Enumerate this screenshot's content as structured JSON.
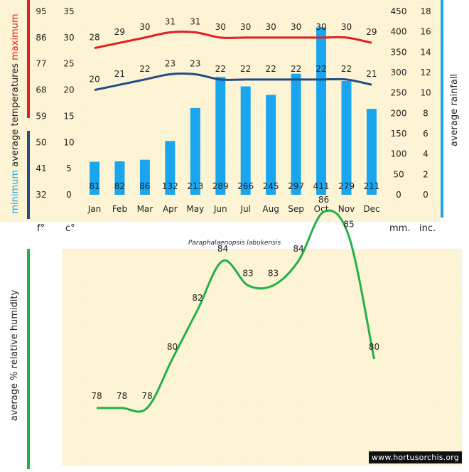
{
  "species": "Paraphalaenopsis labukensis",
  "watermark": "www.hortusorchis.org",
  "colors": {
    "max_line": "#e02020",
    "min_line": "#234c86",
    "rain_bar": "#1aa6ee",
    "humidity_line": "#23b04a",
    "panel_bg": "#fdf4d5",
    "axis_text": "#222222"
  },
  "labels": {
    "axis_f": "f°",
    "axis_c": "c°",
    "axis_mm": "mm.",
    "axis_inc": "inc.",
    "rainfall_title": "average rainfall",
    "humidity_title": "average %  relative humidity",
    "temp_word_minimum": "minimum",
    "temp_word_average": " average  temperatures ",
    "temp_word_maximum": "maximum"
  },
  "chart_data": [
    {
      "type": "bar",
      "categories": [
        "Jan",
        "Feb",
        "Mar",
        "Apr",
        "May",
        "Jun",
        "Jul",
        "Aug",
        "Sep",
        "Oct",
        "Nov",
        "Dec"
      ],
      "series": [
        {
          "name": "maximum",
          "kind": "line",
          "axis": "celsius",
          "values": [
            28,
            29,
            30,
            31,
            31,
            30,
            30,
            30,
            30,
            30,
            30,
            29
          ]
        },
        {
          "name": "minimum",
          "kind": "line",
          "axis": "celsius",
          "values": [
            20,
            21,
            22,
            23,
            23,
            22,
            22,
            22,
            22,
            22,
            22,
            21
          ]
        },
        {
          "name": "average rainfall",
          "kind": "bar",
          "axis": "mm",
          "values": [
            81,
            82,
            86,
            132,
            213,
            289,
            266,
            245,
            297,
            411,
            279,
            211
          ]
        }
      ],
      "axes": {
        "celsius": {
          "range": [
            0,
            35
          ],
          "ticks": [
            0,
            5,
            10,
            15,
            20,
            25,
            30,
            35
          ],
          "label": "c°"
        },
        "fahrenheit": {
          "ticks": [
            32,
            41,
            50,
            59,
            68,
            77,
            86,
            95
          ],
          "label": "f°"
        },
        "mm": {
          "range": [
            0,
            450
          ],
          "ticks": [
            0,
            50,
            100,
            150,
            200,
            250,
            300,
            350,
            400,
            450
          ],
          "label": "mm."
        },
        "inches": {
          "ticks": [
            0,
            2,
            4,
            6,
            8,
            10,
            12,
            14,
            16,
            18
          ],
          "label": "inc."
        }
      }
    },
    {
      "type": "line",
      "categories": [
        "Jan",
        "Feb",
        "Mar",
        "Apr",
        "May",
        "Jun",
        "Jul",
        "Aug",
        "Sep",
        "Oct",
        "Nov",
        "Dec"
      ],
      "series": [
        {
          "name": "average % relative humidity",
          "values": [
            78,
            78,
            78,
            80,
            82,
            84,
            83,
            83,
            84,
            86,
            85,
            80
          ]
        }
      ]
    }
  ]
}
